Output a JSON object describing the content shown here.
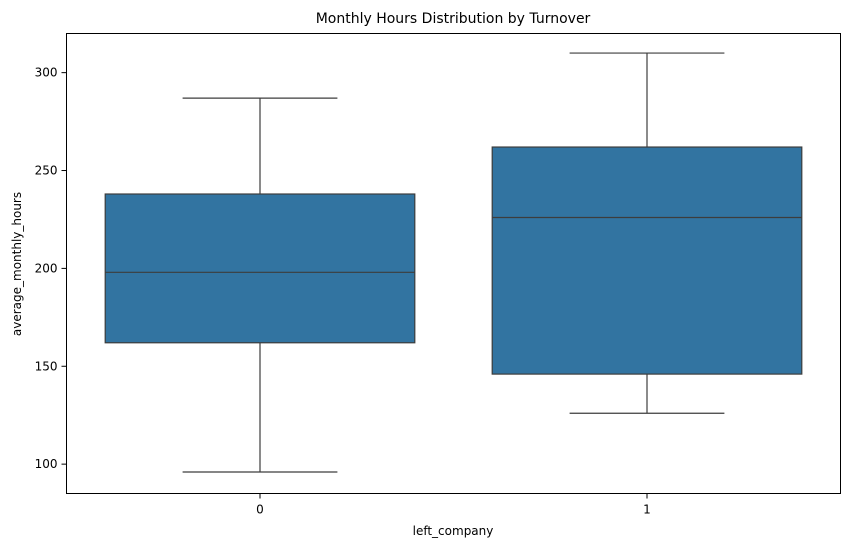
{
  "chart_data": {
    "type": "box",
    "title": "Monthly Hours Distribution by Turnover",
    "xlabel": "left_company",
    "ylabel": "average_monthly_hours",
    "categories": [
      "0",
      "1"
    ],
    "boxes": [
      {
        "category": "0",
        "whisker_low": 96,
        "q1": 162,
        "median": 198,
        "q3": 238,
        "whisker_high": 287
      },
      {
        "category": "1",
        "whisker_low": 126,
        "q1": 146,
        "median": 226,
        "q3": 262,
        "whisker_high": 310
      }
    ],
    "ylim": [
      85,
      320
    ],
    "yticks": [
      100,
      150,
      200,
      250,
      300
    ],
    "box_color": "#3274a1",
    "line_color": "#3d3d3d",
    "grid": false
  }
}
